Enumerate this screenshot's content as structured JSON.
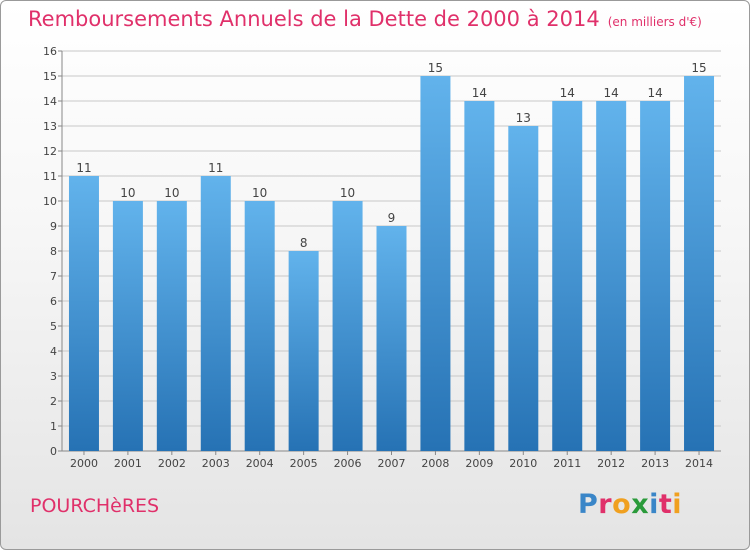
{
  "header": {
    "title": "Remboursements Annuels de la Dette de 2000 à 2014",
    "unit": "(en milliers d'€)"
  },
  "footer": {
    "commune": "POURCHèRES",
    "logo": "Proxiti"
  },
  "colors": {
    "title": "#e0306a",
    "bar_top": "#62b3ec",
    "bar_bottom": "#2672b4",
    "logo_letters": [
      "#3a86c8",
      "#e0306a",
      "#f0a020",
      "#2a9a3a",
      "#3a86c8",
      "#e0306a",
      "#f0a020"
    ]
  },
  "chart_data": {
    "type": "bar",
    "categories": [
      "2000",
      "2001",
      "2002",
      "2003",
      "2004",
      "2005",
      "2006",
      "2007",
      "2008",
      "2009",
      "2010",
      "2011",
      "2012",
      "2013",
      "2014"
    ],
    "values": [
      11,
      10,
      10,
      11,
      10,
      8,
      10,
      9,
      15,
      14,
      13,
      14,
      14,
      14,
      15
    ],
    "data_labels": [
      "11",
      "10",
      "10",
      "11",
      "10",
      "8",
      "10",
      "9",
      "15",
      "14",
      "13",
      "14",
      "14",
      "14",
      "15"
    ],
    "ylim": [
      0,
      16
    ],
    "yticks": [
      "0",
      "1",
      "2",
      "3",
      "4",
      "5",
      "6",
      "7",
      "8",
      "9",
      "10",
      "11",
      "12",
      "13",
      "14",
      "15",
      "16"
    ],
    "grid": true,
    "xlabel": "",
    "ylabel": ""
  }
}
